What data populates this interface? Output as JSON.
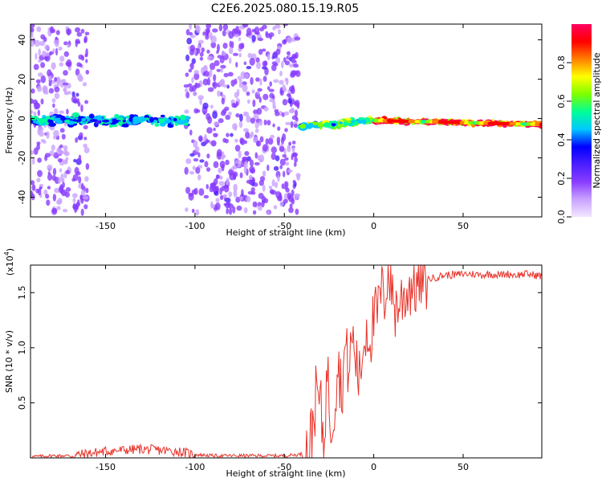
{
  "figure_title": "C2E6.2025.080.15.19.R05",
  "colors": {
    "snr_line": "#e8332a",
    "axis": "#000000",
    "background": "#ffffff",
    "colormap": [
      "#f2e6ff",
      "#c9a3ff",
      "#8a3cff",
      "#4b1fff",
      "#0000ff",
      "#00c8ff",
      "#00ff96",
      "#7fff00",
      "#ffff00",
      "#ff8000",
      "#ff0000",
      "#ff0060"
    ]
  },
  "chart_data": [
    {
      "type": "heatmap",
      "xlabel": "Height of straight line (km)",
      "ylabel": "Frequency (Hz)",
      "xlim": [
        -192,
        94
      ],
      "ylim": [
        -50,
        48
      ],
      "x_ticks": [
        -150,
        -100,
        -50,
        0,
        50
      ],
      "x_tick_labels": [
        "-150",
        "-100",
        "-50",
        "0",
        "50"
      ],
      "y_ticks": [
        -40,
        -20,
        0,
        20,
        40
      ],
      "y_tick_labels": [
        "-40",
        "-20",
        "0",
        "20",
        "40"
      ],
      "colorbar": {
        "label": "Normalized spectral amplitude",
        "range": [
          0.0,
          1.0
        ],
        "ticks": [
          0.0,
          0.2,
          0.4,
          0.6,
          0.8
        ],
        "tick_labels": [
          "0.0",
          "0.2",
          "0.4",
          "0.6",
          "0.8"
        ]
      },
      "features": [
        {
          "x_range": [
            -192,
            -170
          ],
          "freq_center": 0,
          "freq_spread": 48,
          "amplitude": 0.15
        },
        {
          "x_range": [
            -168,
            -160
          ],
          "freq_center": 0,
          "freq_spread": 48,
          "amplitude": 0.18
        },
        {
          "x_range": [
            -105,
            -42
          ],
          "freq_center": 0,
          "freq_spread": 48,
          "amplitude": 0.18
        },
        {
          "x_range": [
            -192,
            -104
          ],
          "freq_center": -1,
          "freq_spread": 3,
          "amplitude": 0.45
        },
        {
          "x_range": [
            -42,
            0
          ],
          "freq_center_start": -4,
          "freq_center_end": -1,
          "freq_spread": 2,
          "amplitude": 0.55
        },
        {
          "x_range": [
            0,
            94
          ],
          "freq_center_start": -1,
          "freq_center_end": -3,
          "freq_spread": 1.2,
          "amplitude": 0.9
        }
      ]
    },
    {
      "type": "line",
      "xlabel": "Height of straight line (km)",
      "ylabel": "SNR (10 * v/v)",
      "y_multiplier_label": "(x10",
      "y_multiplier_exponent": "4",
      "xlim": [
        -192,
        94
      ],
      "ylim": [
        0,
        1.75
      ],
      "x_ticks": [
        -150,
        -100,
        -50,
        0,
        50
      ],
      "x_tick_labels": [
        "-150",
        "-100",
        "-50",
        "0",
        "50"
      ],
      "y_ticks": [
        0.5,
        1.0,
        1.5
      ],
      "y_tick_labels": [
        "0.5",
        "1.0",
        "1.5"
      ],
      "series": [
        {
          "x": [
            -192,
            -180,
            -170,
            -160,
            -150,
            -140,
            -130,
            -120,
            -110,
            -100,
            -90,
            -80,
            -70,
            -60,
            -50,
            -42,
            -38,
            -35,
            -32,
            -30,
            -28,
            -26,
            -24,
            -22,
            -20,
            -18,
            -16,
            -14,
            -12,
            -10,
            -8,
            -6,
            -4,
            -2,
            0,
            2,
            4,
            6,
            8,
            10,
            12,
            14,
            16,
            18,
            20,
            22,
            24,
            26,
            28,
            30,
            35,
            40,
            45,
            50,
            55,
            60,
            65,
            70,
            75,
            80,
            85,
            90,
            94
          ],
          "values": [
            0.01,
            0.02,
            0.02,
            0.04,
            0.06,
            0.07,
            0.08,
            0.07,
            0.06,
            0.03,
            0.02,
            0.02,
            0.02,
            0.02,
            0.02,
            0.03,
            0.05,
            0.2,
            0.6,
            0.5,
            0.15,
            0.8,
            0.3,
            0.5,
            0.9,
            0.6,
            1.0,
            0.8,
            1.1,
            0.9,
            0.7,
            1.0,
            1.2,
            1.1,
            1.25,
            1.3,
            1.5,
            1.45,
            1.72,
            1.55,
            1.35,
            1.4,
            1.45,
            1.5,
            1.55,
            1.6,
            1.55,
            1.62,
            1.6,
            1.62,
            1.64,
            1.66,
            1.66,
            1.67,
            1.67,
            1.66,
            1.67,
            1.66,
            1.67,
            1.66,
            1.67,
            1.66,
            1.65
          ]
        }
      ]
    }
  ]
}
